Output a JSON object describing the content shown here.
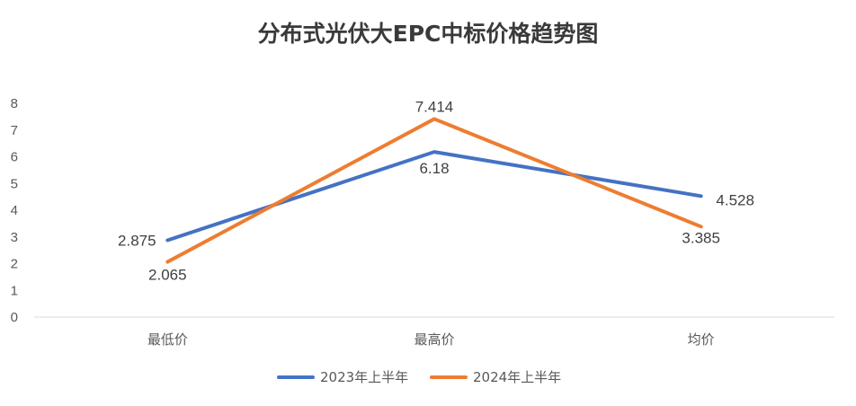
{
  "chart_data": {
    "type": "line",
    "title": "分布式光伏大EPC中标价格趋势图",
    "xlabel": "",
    "ylabel": "",
    "categories": [
      "最低价",
      "最高价",
      "均价"
    ],
    "ylim": [
      0,
      8
    ],
    "yticks": [
      "0",
      "1",
      "2",
      "3",
      "4",
      "5",
      "6",
      "7",
      "8"
    ],
    "grid": false,
    "legend_position": "bottom",
    "series": [
      {
        "name": "2023年上半年",
        "color": "#4472C4",
        "values": [
          2.875,
          6.18,
          4.528
        ],
        "labels": [
          "2.875",
          "6.18",
          "4.528"
        ]
      },
      {
        "name": "2024年上半年",
        "color": "#ED7D31",
        "values": [
          2.065,
          7.414,
          3.385
        ],
        "labels": [
          "2.065",
          "7.414",
          "3.385"
        ]
      }
    ]
  }
}
